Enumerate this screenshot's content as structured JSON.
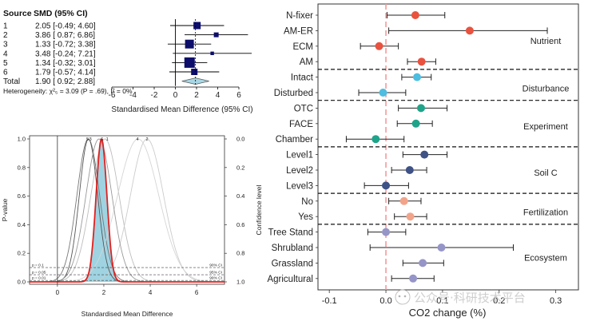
{
  "chart_data": [
    {
      "type": "forest",
      "title": "",
      "header": {
        "source": "Source",
        "smd": "SMD (95% CI)"
      },
      "rows": [
        {
          "source": "1",
          "smd_text": "2.05 [-0.49; 4.60]",
          "est": 2.05,
          "lo": -0.49,
          "hi": 4.6
        },
        {
          "source": "2",
          "smd_text": "3.86 [ 0.87; 6.86]",
          "est": 3.86,
          "lo": 0.87,
          "hi": 6.86
        },
        {
          "source": "3",
          "smd_text": "1.33 [-0.72; 3.38]",
          "est": 1.33,
          "lo": -0.72,
          "hi": 3.38
        },
        {
          "source": "4",
          "smd_text": "3.48 [-0.24; 7.21]",
          "est": 3.48,
          "lo": -0.24,
          "hi": 7.21
        },
        {
          "source": "5",
          "smd_text": "1.34 [-0.32; 3.01]",
          "est": 1.34,
          "lo": -0.32,
          "hi": 3.01
        },
        {
          "source": "6",
          "smd_text": "1.79 [-0.57; 4.14]",
          "est": 1.79,
          "lo": -0.57,
          "hi": 4.14
        }
      ],
      "total": {
        "source": "Total",
        "smd_text": "1.90 [ 0.92; 2.88]",
        "est": 1.9,
        "lo": 0.92,
        "hi": 2.88
      },
      "heterogeneity": "Heterogeneity: χ²₅ = 3.09 (P = .69), I² = 0%",
      "xlim": [
        -6,
        6
      ],
      "xticks": [
        "-6",
        "-4",
        "-2",
        "0",
        "2",
        "4",
        "6"
      ],
      "xlabel": "Standardised Mean Difference (95% CI)"
    },
    {
      "type": "line",
      "title": "",
      "xlabel": "Standardised Mean Difference",
      "ylabel": "P-value",
      "ylabel_right": "Confidence level",
      "xlim": [
        -1.2,
        7.2
      ],
      "ylim": [
        0,
        1
      ],
      "xticks": [
        "0",
        "2",
        "4",
        "6"
      ],
      "yticks": [
        "0.0",
        "0.2",
        "0.4",
        "0.6",
        "0.8",
        "1.0"
      ],
      "yticks_right": [
        "0.0",
        "0.2",
        "0.4",
        "0.6",
        "0.8",
        "1.0"
      ],
      "curve_labels": [
        "5",
        "3",
        "6",
        "1",
        "4",
        "2"
      ],
      "series": [
        {
          "name": "1",
          "center": 2.05,
          "width": 1.3
        },
        {
          "name": "2",
          "center": 3.86,
          "width": 1.53
        },
        {
          "name": "3",
          "center": 1.33,
          "width": 1.05
        },
        {
          "name": "4",
          "center": 3.48,
          "width": 1.9
        },
        {
          "name": "5",
          "center": 1.34,
          "width": 0.85
        },
        {
          "name": "6",
          "center": 1.79,
          "width": 1.2
        },
        {
          "name": "pooled",
          "center": 1.9,
          "width": 0.5
        }
      ],
      "ref_lines": [
        {
          "p": 0.1,
          "left": "p = 0.1",
          "right": "90% CI"
        },
        {
          "p": 0.05,
          "left": "p = 0.05",
          "right": "95% CI"
        },
        {
          "p": 0.01,
          "left": "p = 0.01",
          "right": "99% CI"
        }
      ]
    },
    {
      "type": "forest",
      "title": "",
      "xlabel": "CO2 change (%)",
      "xlim": [
        -0.12,
        0.34
      ],
      "xticks": [
        "-0.1",
        "0.0",
        "0.1",
        "0.2",
        "0.3"
      ],
      "rows": [
        {
          "label": "N-fixer",
          "est": 0.052,
          "lo": 0.002,
          "hi": 0.104,
          "color": "#e8523f",
          "group": "Nutrient"
        },
        {
          "label": "AM-ER",
          "est": 0.148,
          "lo": 0.005,
          "hi": 0.285,
          "color": "#e8523f",
          "group": "Nutrient"
        },
        {
          "label": "ECM",
          "est": -0.012,
          "lo": -0.045,
          "hi": 0.022,
          "color": "#e8523f",
          "group": "Nutrient"
        },
        {
          "label": "AM",
          "est": 0.063,
          "lo": 0.038,
          "hi": 0.088,
          "color": "#e8523f",
          "group": "Nutrient"
        },
        {
          "label": "Intact",
          "est": 0.055,
          "lo": 0.028,
          "hi": 0.08,
          "color": "#4dbde0",
          "group": "Disturbance"
        },
        {
          "label": "Disturbed",
          "est": -0.005,
          "lo": -0.048,
          "hi": 0.035,
          "color": "#4dbde0",
          "group": "Disturbance"
        },
        {
          "label": "OTC",
          "est": 0.062,
          "lo": 0.022,
          "hi": 0.108,
          "color": "#1fa389",
          "group": "Experiment"
        },
        {
          "label": "FACE",
          "est": 0.053,
          "lo": 0.02,
          "hi": 0.082,
          "color": "#1fa389",
          "group": "Experiment"
        },
        {
          "label": "Chamber",
          "est": -0.018,
          "lo": -0.07,
          "hi": 0.032,
          "color": "#1fa389",
          "group": "Experiment"
        },
        {
          "label": "Level1",
          "est": 0.068,
          "lo": 0.03,
          "hi": 0.108,
          "color": "#3f5286",
          "group": "Soil C"
        },
        {
          "label": "Level2",
          "est": 0.042,
          "lo": 0.01,
          "hi": 0.072,
          "color": "#3f5286",
          "group": "Soil C"
        },
        {
          "label": "Level3",
          "est": 0.0,
          "lo": -0.038,
          "hi": 0.04,
          "color": "#3f5286",
          "group": "Soil C"
        },
        {
          "label": "No",
          "est": 0.032,
          "lo": 0.005,
          "hi": 0.062,
          "color": "#f2a48a",
          "group": "Fertilization"
        },
        {
          "label": "Yes",
          "est": 0.043,
          "lo": 0.015,
          "hi": 0.072,
          "color": "#f2a48a",
          "group": "Fertilization"
        },
        {
          "label": "Tree Stand",
          "est": 0.0,
          "lo": -0.032,
          "hi": 0.035,
          "color": "#9595c8",
          "group": "Ecosystem"
        },
        {
          "label": "Shrubland",
          "est": 0.098,
          "lo": -0.028,
          "hi": 0.225,
          "color": "#9595c8",
          "group": "Ecosystem"
        },
        {
          "label": "Grassland",
          "est": 0.065,
          "lo": 0.03,
          "hi": 0.102,
          "color": "#9595c8",
          "group": "Ecosystem"
        },
        {
          "label": "Agricultural",
          "est": 0.048,
          "lo": 0.01,
          "hi": 0.085,
          "color": "#9595c8",
          "group": "Ecosystem"
        }
      ],
      "groups": [
        "Nutrient",
        "Disturbance",
        "Experiment",
        "Soil C",
        "Fertilization",
        "Ecosystem"
      ],
      "ref_line": 0.0
    }
  ],
  "watermark": "公众号·科研技术平台"
}
